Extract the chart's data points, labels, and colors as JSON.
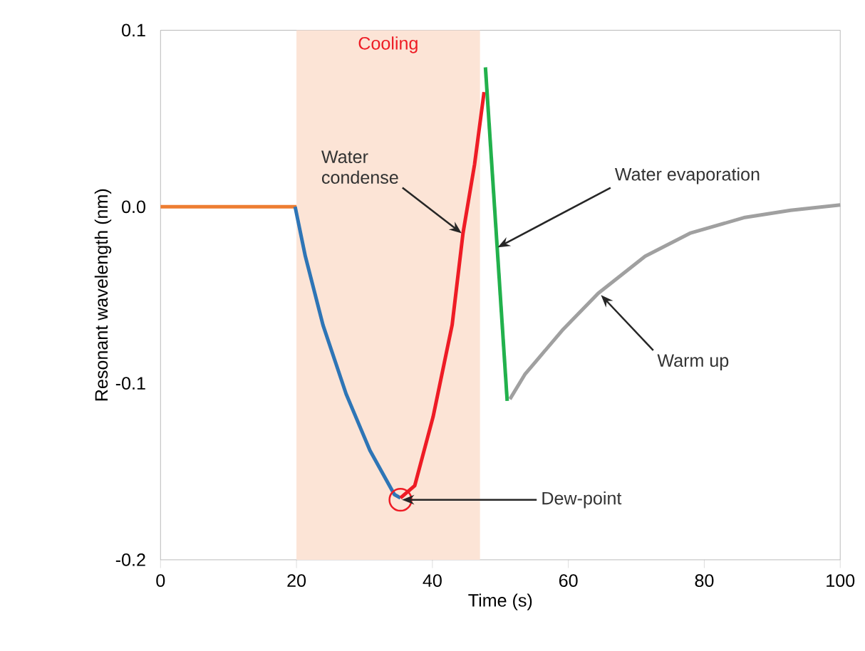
{
  "chart_data": {
    "type": "line",
    "xlabel": "Time (s)",
    "ylabel": "Resonant wavelength (nm)",
    "xlim": [
      0,
      100
    ],
    "ylim": [
      -0.2,
      0.1
    ],
    "xticks": [
      0,
      20,
      40,
      60,
      80,
      100
    ],
    "yticks": [
      -0.2,
      -0.1,
      {
        "value": 0,
        "label": "0.0"
      },
      0.1
    ],
    "grid": false,
    "marker": "none",
    "line_style": "solid",
    "series": [
      {
        "color": "#ed7d31",
        "x": [
          0,
          20
        ],
        "values": [
          0,
          0
        ]
      },
      {
        "color": "#2e75b6",
        "x": [
          19.8,
          21.3,
          23.9,
          27.3,
          30.8,
          34.4,
          35.3
        ],
        "values": [
          0,
          -0.028,
          -0.067,
          -0.106,
          -0.138,
          -0.163,
          -0.165
        ]
      },
      {
        "color": "#ee1c25",
        "x": [
          35.3,
          37.4,
          40.1,
          42.9,
          44.5,
          46.2,
          47.6
        ],
        "values": [
          -0.165,
          -0.158,
          -0.119,
          -0.067,
          -0.015,
          0.024,
          0.065
        ]
      },
      {
        "color": "#22b14c",
        "x": [
          47.8,
          51.0
        ],
        "values": [
          0.079,
          -0.11
        ]
      },
      {
        "color": "#a0a0a0",
        "x": [
          51.4,
          53.6,
          59.1,
          64.4,
          71.3,
          77.9,
          86,
          92.7,
          100
        ],
        "values": [
          -0.109,
          -0.095,
          -0.07,
          -0.049,
          -0.028,
          -0.015,
          -0.006,
          -0.002,
          0.001
        ]
      }
    ],
    "bands": [
      {
        "axis": "x",
        "from": 20,
        "to": 47,
        "label": "Cooling",
        "color": "#fce4d6"
      }
    ],
    "annotations": [
      {
        "text": "Water condense",
        "x": 44.3,
        "y": -0.015
      },
      {
        "text": "Water evaporation",
        "x": 49.6,
        "y": -0.023
      },
      {
        "text": "Warm up",
        "x": 64.8,
        "y": -0.05
      },
      {
        "text": "Dew-point",
        "x": 35.3,
        "y": -0.166
      }
    ]
  }
}
